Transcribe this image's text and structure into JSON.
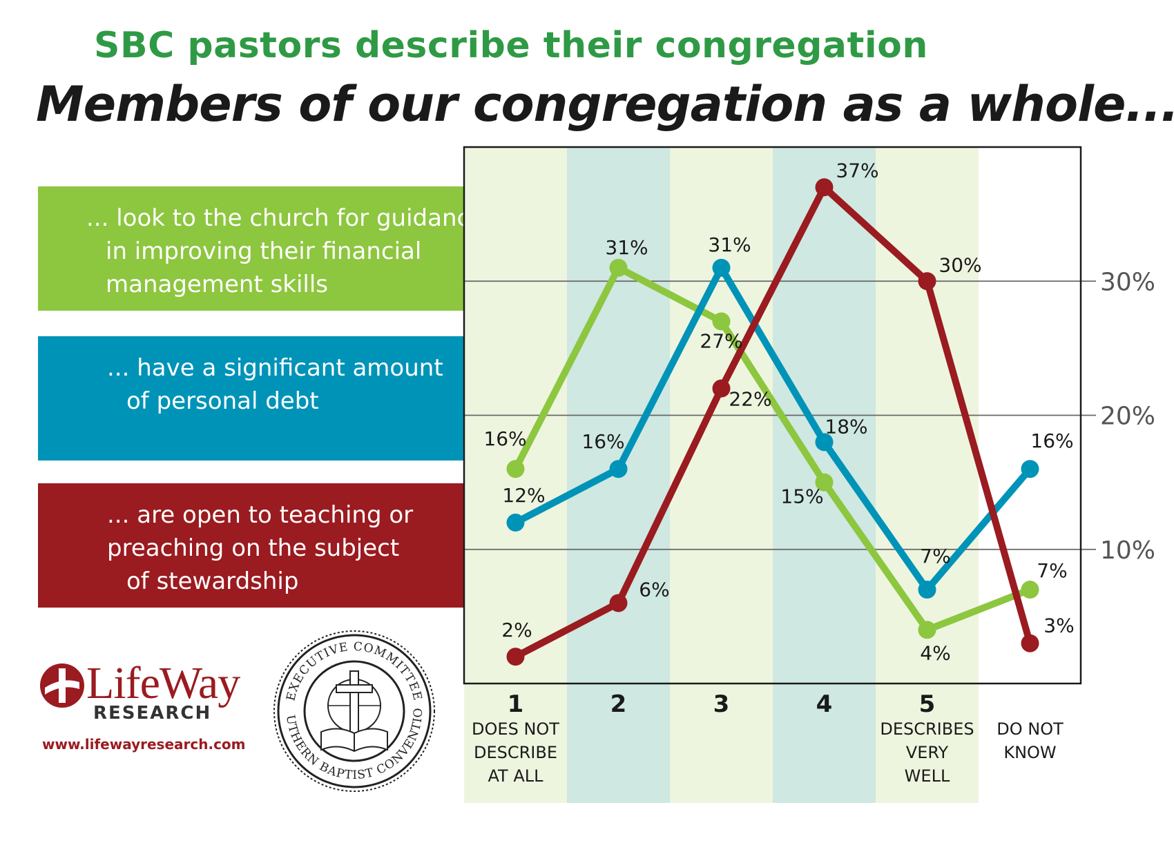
{
  "title": "SBC pastors describe their congregation",
  "subtitle": "Members of our congregation as a whole...",
  "legend": [
    {
      "lines": [
        "... look to the church for guidance",
        "in improving their financial",
        "management skills"
      ],
      "color": "#8dc63f"
    },
    {
      "lines": [
        "... have a significant amount",
        "of personal debt"
      ],
      "color": "#0093b8"
    },
    {
      "lines": [
        "... are open to teaching or",
        "preaching on the subject",
        "of stewardship"
      ],
      "color": "#9a1b20"
    }
  ],
  "logo": {
    "name": "LifeWay",
    "sub": "RESEARCH",
    "url": "www.lifewayresearch.com",
    "seal_top_text": "EXECUTIVE COMMITTEE",
    "seal_bottom_text": "SOUTHERN BAPTIST CONVENTION"
  },
  "chart_data": {
    "type": "line",
    "categories": [
      {
        "num": "1",
        "label": [
          "DOES NOT",
          "DESCRIBE",
          "AT ALL"
        ]
      },
      {
        "num": "2",
        "label": []
      },
      {
        "num": "3",
        "label": []
      },
      {
        "num": "4",
        "label": []
      },
      {
        "num": "5",
        "label": [
          "DESCRIBES",
          "VERY",
          "WELL"
        ]
      },
      {
        "num": "",
        "label": [
          "DO NOT",
          "KNOW"
        ]
      }
    ],
    "yticks": [
      "10%",
      "20%",
      "30%"
    ],
    "ylim": [
      0,
      40
    ],
    "grid": true,
    "series": [
      {
        "color": "#8dc63f",
        "values": [
          16,
          31,
          27,
          15,
          4,
          7
        ]
      },
      {
        "color": "#0093b8",
        "values": [
          12,
          16,
          31,
          18,
          7,
          16
        ]
      },
      {
        "color": "#9a1b20",
        "values": [
          2,
          6,
          22,
          37,
          30,
          3
        ]
      }
    ],
    "band_colors": [
      "#eef5df",
      "#cfe8e1"
    ]
  }
}
